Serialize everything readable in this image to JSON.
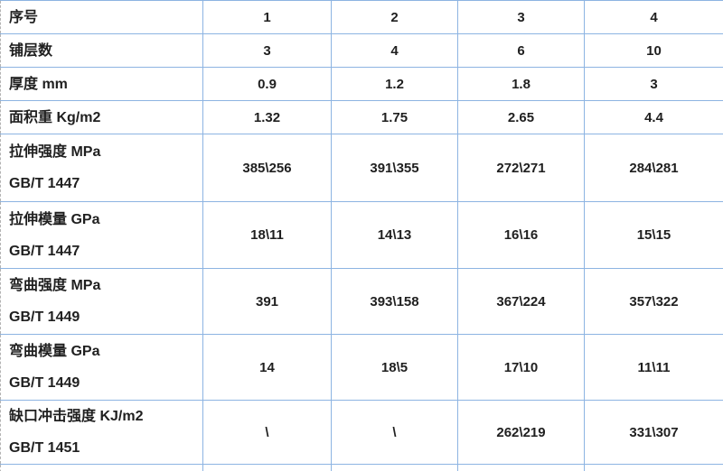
{
  "table": {
    "description_labels": {
      "col_header_row": "序号"
    },
    "rows": [
      {
        "label": "序号",
        "sublabel": "",
        "tall": false,
        "values": [
          "1",
          "2",
          "3",
          "4"
        ]
      },
      {
        "label": "铺层数",
        "sublabel": "",
        "tall": false,
        "values": [
          "3",
          "4",
          "6",
          "10"
        ]
      },
      {
        "label": "厚度 mm",
        "sublabel": "",
        "tall": false,
        "values": [
          "0.9",
          "1.2",
          "1.8",
          "3"
        ]
      },
      {
        "label": "面积重 Kg/m2",
        "sublabel": "",
        "tall": false,
        "values": [
          "1.32",
          "1.75",
          "2.65",
          "4.4"
        ]
      },
      {
        "label": "拉伸强度 MPa",
        "sublabel": "GB/T 1447",
        "tall": true,
        "values": [
          "385\\256",
          "391\\355",
          "272\\271",
          "284\\281"
        ]
      },
      {
        "label": "拉伸模量 GPa",
        "sublabel": "GB/T 1447",
        "tall": true,
        "values": [
          "18\\11",
          "14\\13",
          "16\\16",
          "15\\15"
        ]
      },
      {
        "label": "弯曲强度 MPa",
        "sublabel": "GB/T 1449",
        "tall": true,
        "values": [
          "391",
          "393\\158",
          "367\\224",
          "357\\322"
        ]
      },
      {
        "label": "弯曲模量 GPa",
        "sublabel": "GB/T 1449",
        "tall": true,
        "values": [
          "14",
          "18\\5",
          "17\\10",
          "11\\11"
        ]
      },
      {
        "label": "缺口冲击强度 KJ/m2",
        "sublabel": "GB/T 1451",
        "tall": true,
        "values": [
          "\\",
          "\\",
          "262\\219",
          "331\\307"
        ]
      }
    ]
  },
  "colors": {
    "gridline_blue": "#8DB4E2",
    "page_break_dash_gray": "#B3B3B3",
    "text": "#1F1F1F",
    "background": "#FFFFFF"
  }
}
